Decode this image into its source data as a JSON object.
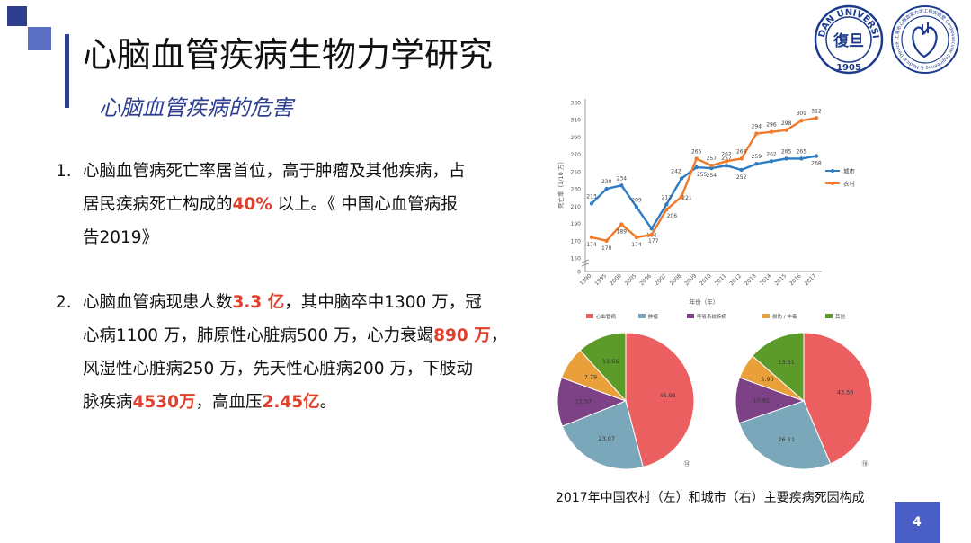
{
  "header": {
    "title": "心脑血管疾病生物力学研究",
    "subtitle": "心脑血管疾病的危害",
    "page_number": "4"
  },
  "logos": {
    "fudan": {
      "top_text": "FUDAN UNIVERSITY",
      "year": "1905",
      "glyph": "復旦"
    },
    "lab": {
      "ring_text": "上海市心脑血管力学工程实验室 Cardiovascular Engineering & Medical Device Laboratory"
    }
  },
  "items": [
    {
      "number": "1.",
      "lines": [
        [
          {
            "t": "心脑血管病死亡率居首位，高于肿瘤及其他疾病，占"
          }
        ],
        [
          {
            "t": "居民疾病死亡构成的"
          },
          {
            "t": "40%",
            "r": true
          },
          {
            "t": " 以上。《 中国心血管病报"
          }
        ],
        [
          {
            "t": "告2019》"
          }
        ]
      ]
    },
    {
      "number": "2.",
      "lines": [
        [
          {
            "t": "心脑血管病现患人数"
          },
          {
            "t": "3.3 亿",
            "r": true
          },
          {
            "t": "，其中脑卒中1300 万，冠"
          }
        ],
        [
          {
            "t": "心病1100 万，肺原性心脏病500 万，心力衰竭"
          },
          {
            "t": "890 万",
            "r": true
          },
          {
            "t": "，"
          }
        ],
        [
          {
            "t": "风湿性心脏病250 万，先天性心脏病200 万，下肢动"
          }
        ],
        [
          {
            "t": "脉疾病"
          },
          {
            "t": "4530万",
            "r": true
          },
          {
            "t": "，高血压"
          },
          {
            "t": "2.45亿",
            "r": true
          },
          {
            "t": "。"
          }
        ]
      ]
    }
  ],
  "caption": "2017年中国农村（左）和城市（右）主要疾病死因构成",
  "chart_data": [
    {
      "type": "line",
      "title": "",
      "xlabel": "年份（年）",
      "ylabel": "死亡率（1/10 万）",
      "categories": [
        "1990",
        "1995",
        "2000",
        "2005",
        "2006",
        "2007",
        "2008",
        "2009",
        "2010",
        "2011",
        "2012",
        "2013",
        "2014",
        "2015",
        "2016",
        "2017"
      ],
      "y_ticks": [
        "0",
        "150",
        "170",
        "190",
        "210",
        "230",
        "250",
        "270",
        "290",
        "310",
        "330"
      ],
      "ylim": [
        150,
        330
      ],
      "y_axis_break": true,
      "legend_position": "right",
      "grid": false,
      "series": [
        {
          "name": "城市",
          "color": "#2e7cc4",
          "values": [
            213,
            230,
            234,
            209,
            184,
            212,
            242,
            255,
            254,
            257,
            252,
            259,
            262,
            265,
            265,
            268
          ],
          "labels": [
            "213",
            "230",
            "234",
            "209",
            "184",
            "212",
            "242",
            "255",
            "254",
            "257",
            "252",
            "259",
            "262",
            "265",
            "265",
            "268"
          ]
        },
        {
          "name": "农村",
          "color": "#f07a2a",
          "values": [
            174,
            170,
            189,
            174,
            177,
            206,
            221,
            265,
            257,
            262,
            265,
            294,
            296,
            298,
            309,
            312
          ],
          "labels": [
            "174",
            "170",
            "189",
            "174",
            "177",
            "206",
            "221",
            "265",
            "257",
            "262",
            "265",
            "294",
            "296",
            "298",
            "309",
            "312"
          ]
        }
      ]
    },
    {
      "type": "pie",
      "title": "",
      "note": "农村",
      "marker": "⑭",
      "legend": [
        "心血管病",
        "肿瘤",
        "呼吸系统疾病",
        "损伤 / 中毒",
        "其他"
      ],
      "colors": [
        "#ec5f60",
        "#7ba7ba",
        "#7d4286",
        "#eaa03a",
        "#5c9a2a"
      ],
      "values": [
        45.91,
        23.07,
        11.57,
        7.79,
        11.66
      ],
      "labels": [
        "45.91",
        "23.07",
        "11.57",
        "7.79",
        "11.66"
      ]
    },
    {
      "type": "pie",
      "title": "",
      "note": "城市",
      "marker": "⑱",
      "legend": [
        "心血管病",
        "肿瘤",
        "呼吸系统疾病",
        "损伤 / 中毒",
        "其他"
      ],
      "colors": [
        "#ec5f60",
        "#7ba7ba",
        "#7d4286",
        "#eaa03a",
        "#5c9a2a"
      ],
      "values": [
        43.56,
        26.11,
        10.82,
        5.9,
        13.51
      ],
      "labels": [
        "43.56",
        "26.11",
        "10.82",
        "5.90",
        "13.51"
      ]
    }
  ]
}
